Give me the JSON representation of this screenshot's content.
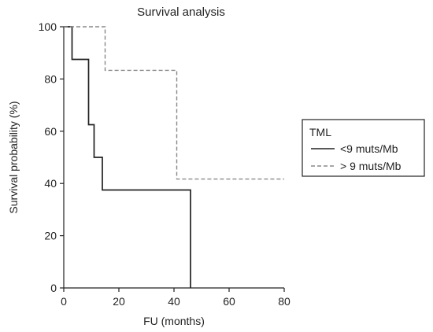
{
  "chart_data": {
    "type": "line",
    "title": "Survival analysis",
    "xlabel": "FU (months)",
    "ylabel": "Survival probability (%)",
    "xlim": [
      0,
      80
    ],
    "ylim": [
      0,
      100
    ],
    "xticks": [
      0,
      20,
      40,
      60,
      80
    ],
    "yticks": [
      0,
      20,
      40,
      60,
      80,
      100
    ],
    "grid": false,
    "legend": {
      "title": "TML",
      "placement": "right"
    },
    "series": [
      {
        "name": "<9 muts/Mb",
        "style": "solid",
        "color": "#222222",
        "x": [
          0,
          3,
          3,
          9,
          9,
          11,
          11,
          14,
          14,
          46,
          46
        ],
        "y": [
          100,
          100,
          87.5,
          87.5,
          62.5,
          62.5,
          50,
          50,
          37.5,
          37.5,
          0
        ]
      },
      {
        "name": "> 9 muts/Mb",
        "style": "dashed",
        "color": "#888888",
        "x": [
          0,
          15,
          15,
          41,
          41,
          80
        ],
        "y": [
          100,
          100,
          83.3,
          83.3,
          41.7,
          41.7
        ]
      }
    ]
  }
}
